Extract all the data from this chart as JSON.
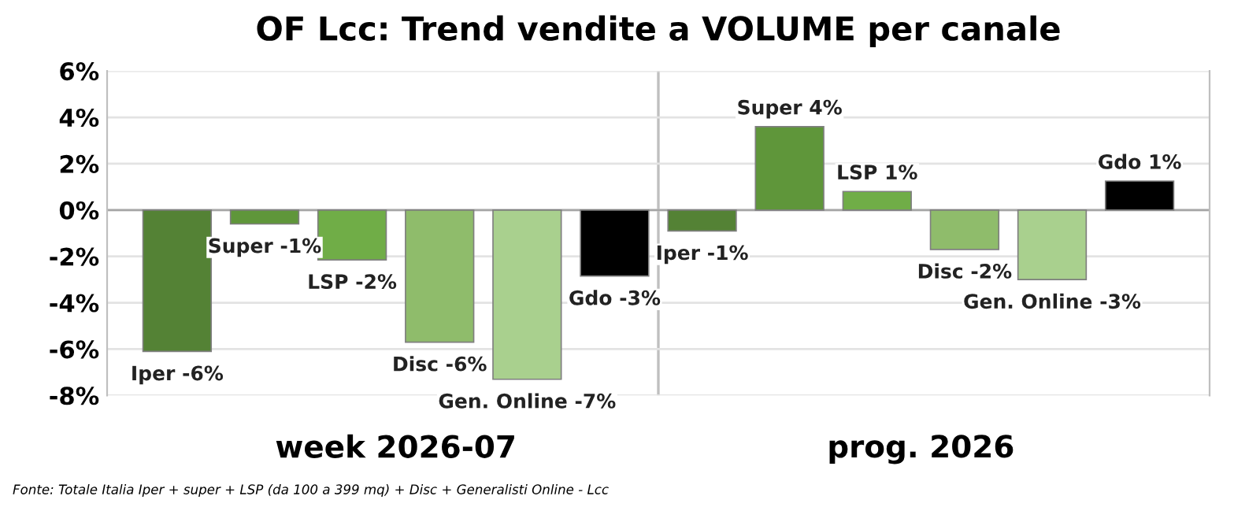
{
  "chart_data": {
    "type": "bar",
    "title": "OF Lcc: Trend vendite a VOLUME per canale",
    "categories": [
      null,
      null,
      null,
      null,
      null,
      null,
      null,
      null,
      null,
      null,
      null,
      null
    ],
    "values": [
      -6.1,
      -0.6,
      -2.15,
      -5.7,
      -7.3,
      -2.85,
      -0.9,
      3.6,
      0.8,
      -1.7,
      -3.0,
      1.25
    ],
    "colors": [
      "#548235",
      "#5f963a",
      "#70ad47",
      "#8fbc6b",
      "#a9d08e",
      "#000000",
      "#548235",
      "#5f963a",
      "#70ad47",
      "#8fbc6b",
      "#a9d08e",
      "#000000"
    ],
    "value_labels": [
      "Iper -6%",
      "Super -1%",
      "LSP -2%",
      "Disc -6%",
      "Gen. Online -7%",
      "Gdo -3%",
      "Iper -1%",
      "Super 4%",
      "LSP 1%",
      "Disc -2%",
      "Gen. Online -3%",
      "Gdo 1%"
    ],
    "ylim": [
      -8,
      6
    ],
    "yticks": [
      {
        "value": -8,
        "label": "-8%"
      },
      {
        "value": -6,
        "label": "-6%"
      },
      {
        "value": -4,
        "label": "-4%"
      },
      {
        "value": -2,
        "label": "-2%"
      },
      {
        "value": 0,
        "label": "0%"
      },
      {
        "value": 2,
        "label": "2%"
      },
      {
        "value": 4,
        "label": "4%"
      },
      {
        "value": 6,
        "label": "6%"
      }
    ],
    "grid": "y",
    "annotations": [
      "week 2026-07",
      "prog. 2026",
      "Fonte: Totale Italia Iper + super + LSP (da 100 a 399 mq) + Disc + Generalisti Online - Lcc"
    ]
  }
}
